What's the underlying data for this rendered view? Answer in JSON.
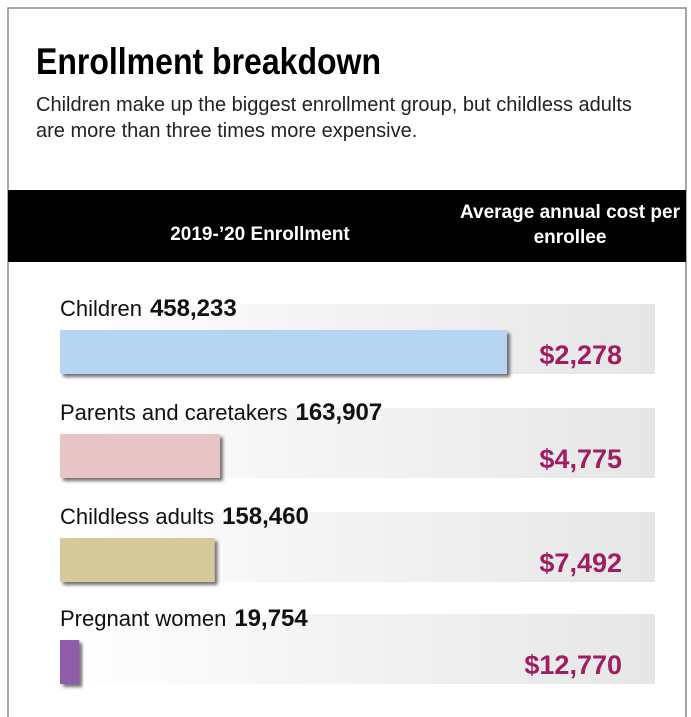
{
  "chart_data": {
    "type": "bar",
    "title": "Enrollment breakdown",
    "subtitle": "Children make up the biggest enrollment group, but childless adults are more than three times more expensive.",
    "column_headers": [
      "2019-’20 Enrollment",
      "Average annual cost per enrollee"
    ],
    "categories": [
      "Children",
      "Parents and caretakers",
      "Childless adults",
      "Pregnant women"
    ],
    "values": [
      458233,
      163907,
      158460,
      19754
    ],
    "value_labels": [
      "458,233",
      "163,907",
      "158,460",
      "19,754"
    ],
    "colors": [
      "#b5d5f1",
      "#e9c4c7",
      "#d6c99b",
      "#8e5ba8"
    ],
    "cost": {
      "values": [
        2278,
        4775,
        7492,
        12770
      ],
      "value_labels": [
        "$2,278",
        "$4,775",
        "$7,492",
        "$12,770"
      ],
      "color": "#a11d62"
    }
  }
}
